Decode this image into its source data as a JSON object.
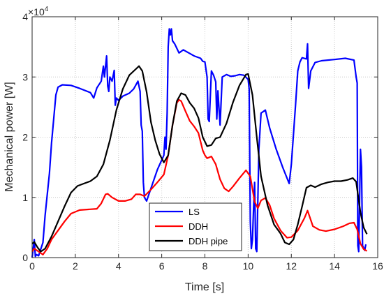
{
  "chart_data": {
    "type": "line",
    "xlabel": "Time [s]",
    "ylabel": "Mechanical power [W]",
    "xlim": [
      0,
      16
    ],
    "ylim": [
      0,
      40000
    ],
    "y_scale_exponent_base": "×10",
    "y_scale_exponent_power": "4",
    "grid": "major-dotted",
    "legend_position": "bottom-center",
    "x_ticks": [
      "0",
      "2",
      "4",
      "6",
      "8",
      "10",
      "12",
      "14",
      "16"
    ],
    "y_ticks": [
      "0",
      "1",
      "2",
      "3",
      "4"
    ],
    "series": [
      {
        "name": "LS",
        "color": "#0000ff",
        "points": [
          [
            0,
            0
          ],
          [
            0.1,
            3000
          ],
          [
            0.15,
            200
          ],
          [
            0.2,
            500
          ],
          [
            0.3,
            300
          ],
          [
            0.5,
            2500
          ],
          [
            0.6,
            7000
          ],
          [
            0.8,
            14000
          ],
          [
            0.9,
            19000
          ],
          [
            1.0,
            23000
          ],
          [
            1.1,
            27000
          ],
          [
            1.2,
            28300
          ],
          [
            1.4,
            28700
          ],
          [
            1.8,
            28600
          ],
          [
            2.2,
            28100
          ],
          [
            2.7,
            27400
          ],
          [
            2.85,
            26500
          ],
          [
            3.0,
            28200
          ],
          [
            3.2,
            29300
          ],
          [
            3.3,
            31800
          ],
          [
            3.35,
            30000
          ],
          [
            3.45,
            33500
          ],
          [
            3.5,
            28500
          ],
          [
            3.55,
            27600
          ],
          [
            3.6,
            30000
          ],
          [
            3.7,
            29300
          ],
          [
            3.8,
            31100
          ],
          [
            3.85,
            25300
          ],
          [
            3.9,
            26500
          ],
          [
            4.0,
            26100
          ],
          [
            4.2,
            26800
          ],
          [
            4.5,
            27300
          ],
          [
            4.7,
            28000
          ],
          [
            4.9,
            29300
          ],
          [
            5.0,
            27600
          ],
          [
            5.05,
            22000
          ],
          [
            5.1,
            21000
          ],
          [
            5.15,
            12500
          ],
          [
            5.2,
            10000
          ],
          [
            5.3,
            9400
          ],
          [
            5.5,
            11500
          ],
          [
            5.8,
            14600
          ],
          [
            6.1,
            17000
          ],
          [
            6.15,
            20000
          ],
          [
            6.2,
            18000
          ],
          [
            6.25,
            24000
          ],
          [
            6.3,
            35000
          ],
          [
            6.35,
            38000
          ],
          [
            6.4,
            37000
          ],
          [
            6.45,
            38000
          ],
          [
            6.5,
            36000
          ],
          [
            6.6,
            35500
          ],
          [
            6.8,
            34000
          ],
          [
            7.0,
            34500
          ],
          [
            7.5,
            33500
          ],
          [
            7.8,
            33100
          ],
          [
            7.9,
            32600
          ],
          [
            8.0,
            32500
          ],
          [
            8.1,
            30000
          ],
          [
            8.15,
            23000
          ],
          [
            8.2,
            22600
          ],
          [
            8.3,
            31000
          ],
          [
            8.4,
            30300
          ],
          [
            8.5,
            29200
          ],
          [
            8.55,
            23000
          ],
          [
            8.6,
            27700
          ],
          [
            8.7,
            22000
          ],
          [
            8.8,
            30000
          ],
          [
            9.0,
            30400
          ],
          [
            9.2,
            30100
          ],
          [
            9.4,
            30200
          ],
          [
            9.6,
            30400
          ],
          [
            9.8,
            30300
          ],
          [
            10.0,
            29600
          ],
          [
            10.05,
            28000
          ],
          [
            10.1,
            6000
          ],
          [
            10.15,
            1500
          ],
          [
            10.2,
            3000
          ],
          [
            10.25,
            8000
          ],
          [
            10.3,
            12500
          ],
          [
            10.35,
            1500
          ],
          [
            10.4,
            1000
          ],
          [
            10.5,
            18000
          ],
          [
            10.6,
            24000
          ],
          [
            10.8,
            24500
          ],
          [
            11.0,
            21500
          ],
          [
            11.3,
            18000
          ],
          [
            11.6,
            15000
          ],
          [
            11.9,
            12300
          ],
          [
            12.0,
            15500
          ],
          [
            12.2,
            25500
          ],
          [
            12.3,
            31000
          ],
          [
            12.4,
            32500
          ],
          [
            12.5,
            33200
          ],
          [
            12.7,
            33000
          ],
          [
            12.75,
            35500
          ],
          [
            12.8,
            28100
          ],
          [
            12.85,
            29500
          ],
          [
            12.9,
            31000
          ],
          [
            13.1,
            32400
          ],
          [
            13.4,
            32700
          ],
          [
            14.0,
            32900
          ],
          [
            14.5,
            33100
          ],
          [
            14.9,
            32800
          ],
          [
            15.0,
            30000
          ],
          [
            15.05,
            29000
          ],
          [
            15.08,
            2000
          ],
          [
            15.12,
            1000
          ],
          [
            15.2,
            18000
          ],
          [
            15.25,
            15000
          ],
          [
            15.3,
            2000
          ],
          [
            15.4,
            1200
          ],
          [
            15.45,
            2200
          ]
        ]
      },
      {
        "name": "DDH",
        "color": "#ff0000",
        "points": [
          [
            0,
            1000
          ],
          [
            0.1,
            1500
          ],
          [
            0.3,
            1000
          ],
          [
            0.5,
            500
          ],
          [
            0.7,
            1500
          ],
          [
            0.9,
            3000
          ],
          [
            1.2,
            4500
          ],
          [
            1.5,
            6000
          ],
          [
            1.8,
            7300
          ],
          [
            2.2,
            7900
          ],
          [
            2.6,
            8000
          ],
          [
            3.0,
            8100
          ],
          [
            3.2,
            9000
          ],
          [
            3.4,
            10500
          ],
          [
            3.5,
            10600
          ],
          [
            3.7,
            10000
          ],
          [
            4.0,
            9400
          ],
          [
            4.3,
            9400
          ],
          [
            4.6,
            9700
          ],
          [
            4.8,
            10500
          ],
          [
            5.0,
            10500
          ],
          [
            5.2,
            10200
          ],
          [
            5.5,
            11300
          ],
          [
            5.8,
            12500
          ],
          [
            6.1,
            13800
          ],
          [
            6.3,
            17000
          ],
          [
            6.5,
            22000
          ],
          [
            6.7,
            25700
          ],
          [
            6.8,
            26200
          ],
          [
            6.9,
            26000
          ],
          [
            7.1,
            24300
          ],
          [
            7.3,
            22700
          ],
          [
            7.5,
            21800
          ],
          [
            7.7,
            20700
          ],
          [
            7.9,
            17800
          ],
          [
            8.0,
            17000
          ],
          [
            8.1,
            16500
          ],
          [
            8.3,
            16800
          ],
          [
            8.5,
            15500
          ],
          [
            8.7,
            13000
          ],
          [
            8.9,
            11500
          ],
          [
            9.1,
            11000
          ],
          [
            9.3,
            11800
          ],
          [
            9.6,
            13200
          ],
          [
            9.9,
            14500
          ],
          [
            10.1,
            13500
          ],
          [
            10.3,
            9300
          ],
          [
            10.45,
            8200
          ],
          [
            10.6,
            9500
          ],
          [
            10.8,
            9900
          ],
          [
            11.0,
            8700
          ],
          [
            11.2,
            6500
          ],
          [
            11.5,
            4500
          ],
          [
            11.8,
            3300
          ],
          [
            12.0,
            3400
          ],
          [
            12.3,
            4500
          ],
          [
            12.6,
            6500
          ],
          [
            12.75,
            7800
          ],
          [
            12.85,
            6800
          ],
          [
            13.0,
            5200
          ],
          [
            13.3,
            4600
          ],
          [
            13.6,
            4400
          ],
          [
            14.0,
            4700
          ],
          [
            14.4,
            5200
          ],
          [
            14.7,
            5700
          ],
          [
            14.9,
            5800
          ],
          [
            15.05,
            4700
          ],
          [
            15.2,
            2300
          ],
          [
            15.35,
            1400
          ],
          [
            15.5,
            1100
          ]
        ]
      },
      {
        "name": "DDH pipe",
        "color": "#000000",
        "points": [
          [
            0,
            2300
          ],
          [
            0.1,
            2600
          ],
          [
            0.25,
            1700
          ],
          [
            0.4,
            1000
          ],
          [
            0.6,
            1500
          ],
          [
            0.9,
            3500
          ],
          [
            1.2,
            6000
          ],
          [
            1.5,
            8500
          ],
          [
            1.8,
            10800
          ],
          [
            2.1,
            11900
          ],
          [
            2.4,
            12300
          ],
          [
            2.7,
            12700
          ],
          [
            3.0,
            13500
          ],
          [
            3.3,
            15500
          ],
          [
            3.6,
            19500
          ],
          [
            3.9,
            24500
          ],
          [
            4.2,
            28000
          ],
          [
            4.5,
            30300
          ],
          [
            4.8,
            31300
          ],
          [
            4.95,
            31800
          ],
          [
            5.1,
            31000
          ],
          [
            5.3,
            27500
          ],
          [
            5.5,
            22500
          ],
          [
            5.7,
            19500
          ],
          [
            5.9,
            17200
          ],
          [
            6.1,
            15800
          ],
          [
            6.3,
            17000
          ],
          [
            6.5,
            22000
          ],
          [
            6.7,
            26000
          ],
          [
            6.9,
            27300
          ],
          [
            7.1,
            27000
          ],
          [
            7.3,
            25700
          ],
          [
            7.5,
            24800
          ],
          [
            7.7,
            23200
          ],
          [
            7.9,
            20000
          ],
          [
            8.1,
            18500
          ],
          [
            8.3,
            18700
          ],
          [
            8.5,
            19800
          ],
          [
            8.7,
            20000
          ],
          [
            9.0,
            22300
          ],
          [
            9.3,
            25800
          ],
          [
            9.6,
            28600
          ],
          [
            9.9,
            30400
          ],
          [
            10.0,
            30500
          ],
          [
            10.2,
            27000
          ],
          [
            10.4,
            20000
          ],
          [
            10.6,
            13500
          ],
          [
            10.9,
            8700
          ],
          [
            11.2,
            5500
          ],
          [
            11.5,
            4000
          ],
          [
            11.7,
            2500
          ],
          [
            11.9,
            2200
          ],
          [
            12.1,
            3000
          ],
          [
            12.3,
            5500
          ],
          [
            12.5,
            8500
          ],
          [
            12.7,
            11600
          ],
          [
            12.9,
            12000
          ],
          [
            13.1,
            11700
          ],
          [
            13.4,
            12200
          ],
          [
            13.7,
            12500
          ],
          [
            14.0,
            12700
          ],
          [
            14.3,
            12700
          ],
          [
            14.6,
            12900
          ],
          [
            14.85,
            13200
          ],
          [
            15.0,
            12600
          ],
          [
            15.2,
            7500
          ],
          [
            15.35,
            5000
          ],
          [
            15.5,
            3900
          ]
        ]
      }
    ]
  }
}
